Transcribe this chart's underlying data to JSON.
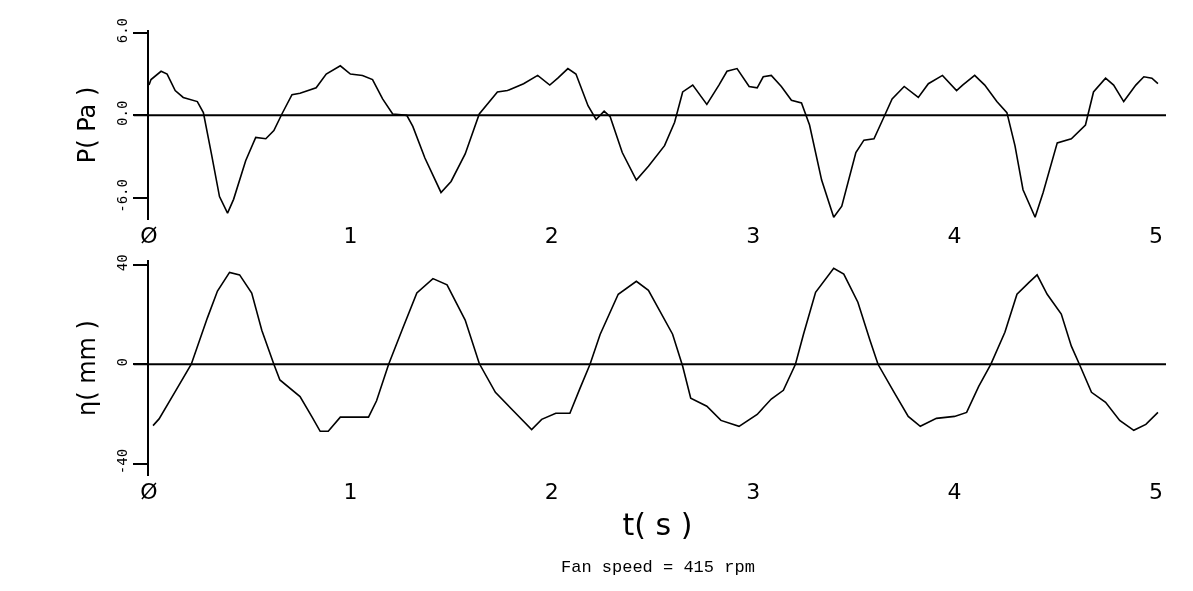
{
  "chart_data": [
    {
      "type": "line",
      "ylabel": "P( Pa )",
      "xlim": [
        0,
        5.05
      ],
      "xticks": [
        {
          "value": 0,
          "label": "Ø"
        },
        1,
        2,
        3,
        4,
        5
      ],
      "ylim": [
        -7.6,
        6.2
      ],
      "yticks": [
        {
          "value": -6,
          "label": "-6.0"
        },
        {
          "value": 0,
          "label": "0.0"
        },
        {
          "value": 6,
          "label": "6.0"
        }
      ],
      "grid": false,
      "marker": "none",
      "line_style": "solid",
      "ref_lines": [
        {
          "axis": "y",
          "value": 0,
          "color": "#000000"
        }
      ],
      "series": [
        {
          "color": "#000000",
          "x": [
            0,
            0.01,
            0.06,
            0.09,
            0.13,
            0.17,
            0.24,
            0.27,
            0.31,
            0.35,
            0.39,
            0.42,
            0.48,
            0.53,
            0.58,
            0.62,
            0.66,
            0.71,
            0.75,
            0.83,
            0.88,
            0.95,
            1.0,
            1.06,
            1.11,
            1.16,
            1.21,
            1.28,
            1.31,
            1.37,
            1.45,
            1.5,
            1.57,
            1.64,
            1.73,
            1.78,
            1.86,
            1.93,
            1.99,
            2.03,
            2.08,
            2.12,
            2.18,
            2.22,
            2.26,
            2.29,
            2.35,
            2.42,
            2.48,
            2.56,
            2.61,
            2.65,
            2.7,
            2.77,
            2.83,
            2.87,
            2.92,
            2.98,
            3.02,
            3.05,
            3.09,
            3.14,
            3.19,
            3.24,
            3.28,
            3.34,
            3.4,
            3.44,
            3.51,
            3.55,
            3.6,
            3.65,
            3.69,
            3.75,
            3.82,
            3.87,
            3.94,
            4.01,
            4.04,
            4.1,
            4.15,
            4.21,
            4.26,
            4.3,
            4.34,
            4.4,
            4.44,
            4.51,
            4.58,
            4.65,
            4.69,
            4.75,
            4.79,
            4.84,
            4.9,
            4.94,
            4.98,
            5.01
          ],
          "values": [
            2.2,
            2.6,
            3.2,
            3.0,
            1.8,
            1.3,
            1.0,
            0.2,
            -2.8,
            -5.9,
            -7.1,
            -6.1,
            -3.3,
            -1.6,
            -1.7,
            -1.1,
            0.1,
            1.5,
            1.6,
            2.0,
            3.0,
            3.6,
            3.0,
            2.9,
            2.6,
            1.2,
            0.1,
            0,
            -0.8,
            -3.1,
            -5.6,
            -4.8,
            -2.8,
            0.1,
            1.7,
            1.8,
            2.3,
            2.9,
            2.2,
            2.7,
            3.4,
            3.0,
            0.7,
            -0.3,
            0.3,
            -0.1,
            -2.7,
            -4.7,
            -3.7,
            -2.2,
            -0.5,
            1.7,
            2.2,
            0.8,
            2.2,
            3.2,
            3.4,
            2.1,
            2.0,
            2.8,
            2.9,
            2.1,
            1.1,
            0.9,
            -0.7,
            -4.7,
            -7.4,
            -6.6,
            -2.7,
            -1.8,
            -1.7,
            -0.1,
            1.2,
            2.1,
            1.3,
            2.3,
            2.9,
            1.8,
            2.2,
            2.9,
            2.2,
            1.0,
            0.2,
            -2.2,
            -5.4,
            -7.4,
            -5.6,
            -2.0,
            -1.7,
            -0.7,
            1.7,
            2.7,
            2.2,
            1.0,
            2.2,
            2.8,
            2.7,
            2.3
          ]
        }
      ]
    },
    {
      "type": "line",
      "ylabel": "η( mm )",
      "xlabel": "t( s )",
      "annotations": [
        "Fan speed = 415 rpm"
      ],
      "xlim": [
        0,
        5.05
      ],
      "xticks": [
        {
          "value": 0,
          "label": "Ø"
        },
        1,
        2,
        3,
        4,
        5
      ],
      "ylim": [
        -45,
        42
      ],
      "yticks": [
        -40,
        0,
        40
      ],
      "grid": false,
      "marker": "none",
      "line_style": "solid",
      "ref_lines": [
        {
          "axis": "y",
          "value": 0,
          "color": "#000000"
        }
      ],
      "series": [
        {
          "color": "#000000",
          "x": [
            0.02,
            0.05,
            0.13,
            0.21,
            0.29,
            0.34,
            0.4,
            0.45,
            0.51,
            0.56,
            0.62,
            0.65,
            0.75,
            0.81,
            0.85,
            0.89,
            0.95,
            1.02,
            1.09,
            1.13,
            1.19,
            1.26,
            1.33,
            1.41,
            1.48,
            1.57,
            1.64,
            1.72,
            1.81,
            1.9,
            1.95,
            2.02,
            2.09,
            2.14,
            2.19,
            2.24,
            2.33,
            2.42,
            2.48,
            2.6,
            2.65,
            2.69,
            2.77,
            2.84,
            2.93,
            3.02,
            3.09,
            3.15,
            3.21,
            3.25,
            3.31,
            3.4,
            3.45,
            3.52,
            3.58,
            3.62,
            3.7,
            3.77,
            3.83,
            3.91,
            4.0,
            4.06,
            4.12,
            4.18,
            4.25,
            4.31,
            4.37,
            4.41,
            4.46,
            4.53,
            4.58,
            4.62,
            4.68,
            4.75,
            4.82,
            4.89,
            4.95,
            5.01
          ],
          "values": [
            -24.7,
            -22,
            -11,
            0,
            18.7,
            29.5,
            37,
            36,
            28.7,
            13.7,
            0,
            -6.3,
            -13,
            -21.3,
            -27,
            -27,
            -21.3,
            -21.3,
            -21.3,
            -14.7,
            0,
            14.5,
            28.7,
            34.5,
            32,
            17.8,
            0.3,
            -11.3,
            -18.8,
            -26.3,
            -22.2,
            -19.7,
            -19.7,
            -9.7,
            0,
            12,
            28.2,
            33.4,
            29.8,
            12.1,
            -0.8,
            -13.7,
            -16.9,
            -22.6,
            -25,
            -20.2,
            -14,
            -10.5,
            0,
            12.1,
            29,
            38.7,
            36.3,
            25,
            9.7,
            0,
            -11.3,
            -21,
            -25,
            -21.8,
            -21,
            -19.4,
            -8.9,
            0,
            12.9,
            28.2,
            33,
            36,
            28.2,
            20.2,
            7.3,
            0,
            -11.3,
            -15.3,
            -22.6,
            -26.6,
            -24.2,
            -19.4
          ]
        }
      ]
    }
  ]
}
